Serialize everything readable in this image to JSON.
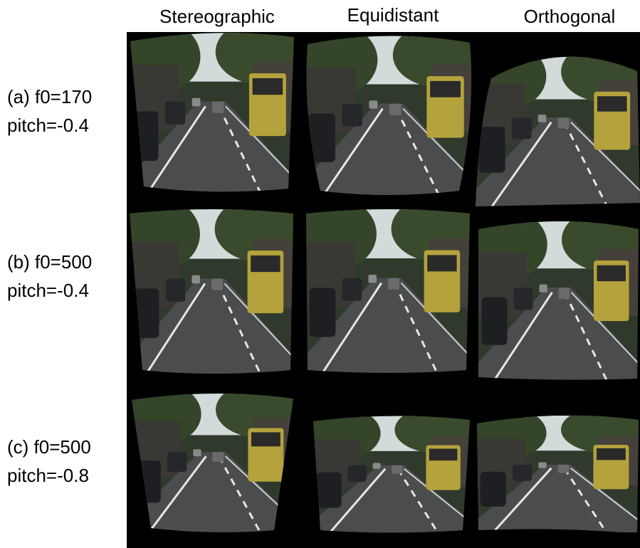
{
  "columns": [
    "Stereographic",
    "Equidistant",
    "Orthogonal"
  ],
  "rows": [
    {
      "label": "(a) f0=170",
      "pitch": "pitch=-0.4"
    },
    {
      "label": "(b) f0=500",
      "pitch": "pitch=-0.4"
    },
    {
      "label": "(c) f0=500",
      "pitch": "pitch=-0.8"
    }
  ]
}
